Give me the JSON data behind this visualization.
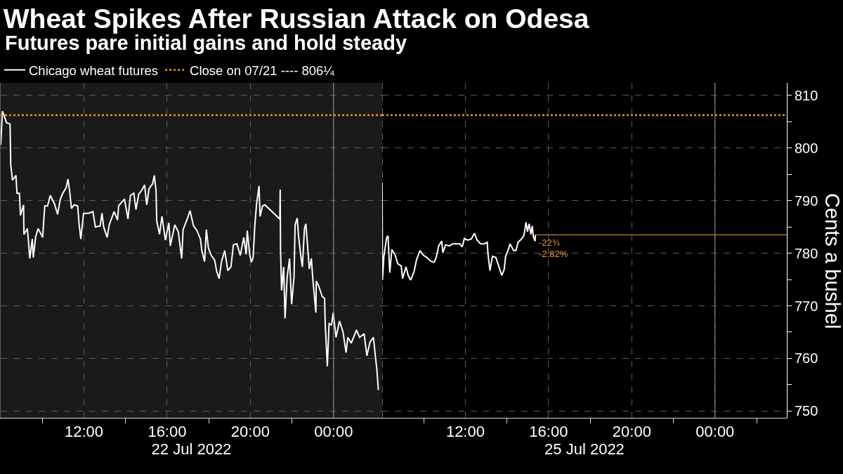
{
  "chart_data": [
    {
      "type": "line",
      "title": "Wheat Spikes After Russian Attack on Odesa",
      "subtitle": "Futures pare initial gains and hold steady",
      "xlabel": "22 Jul 2022",
      "xlim": [
        "2022-07-22T08:00",
        "2022-07-23T02:20"
      ],
      "xticks": [
        {
          "value": "2022-07-22T10:00",
          "label": null
        },
        {
          "value": "2022-07-22T12:00",
          "label": "12:00"
        },
        {
          "value": "2022-07-22T14:00",
          "label": null
        },
        {
          "value": "2022-07-22T16:00",
          "label": "16:00"
        },
        {
          "value": "2022-07-22T18:00",
          "label": null
        },
        {
          "value": "2022-07-22T20:00",
          "label": "20:00"
        },
        {
          "value": "2022-07-22T22:00",
          "label": null
        },
        {
          "value": "2022-07-23T00:00",
          "label": "00:00"
        }
      ],
      "ylim": [
        748.7,
        812.4
      ],
      "yticks": [
        750,
        760,
        770,
        780,
        790,
        800,
        810
      ],
      "tick_labels": "x",
      "grid": true,
      "legend": "top left",
      "series": [
        {
          "name": "Chicago wheat futures",
          "color": "#ffffff",
          "x": [
            "2022-07-22T08:00",
            "2022-07-22T08:05",
            "2022-07-22T08:10",
            "2022-07-22T08:17",
            "2022-07-22T08:27",
            "2022-07-22T08:29",
            "2022-07-22T08:34",
            "2022-07-22T08:44",
            "2022-07-22T08:47",
            "2022-07-22T08:54",
            "2022-07-22T08:57",
            "2022-07-22T09:06",
            "2022-07-22T09:07",
            "2022-07-22T09:17",
            "2022-07-22T09:24",
            "2022-07-22T09:31",
            "2022-07-22T09:34",
            "2022-07-22T09:41",
            "2022-07-22T09:48",
            "2022-07-22T10:01",
            "2022-07-22T10:07",
            "2022-07-22T10:15",
            "2022-07-22T10:23",
            "2022-07-22T10:35",
            "2022-07-22T10:44",
            "2022-07-22T10:52",
            "2022-07-22T10:59",
            "2022-07-22T11:09",
            "2022-07-22T11:14",
            "2022-07-22T11:19",
            "2022-07-22T11:24",
            "2022-07-22T11:32",
            "2022-07-22T11:42",
            "2022-07-22T11:46",
            "2022-07-22T11:51",
            "2022-07-22T11:59",
            "2022-07-22T12:13",
            "2022-07-22T12:26",
            "2022-07-22T12:33",
            "2022-07-22T12:47",
            "2022-07-22T12:52",
            "2022-07-22T12:57",
            "2022-07-22T13:07",
            "2022-07-22T13:13",
            "2022-07-22T13:27",
            "2022-07-22T13:37",
            "2022-07-22T13:40",
            "2022-07-22T13:57",
            "2022-07-22T14:07",
            "2022-07-22T14:14",
            "2022-07-22T14:24",
            "2022-07-22T14:30",
            "2022-07-22T14:38",
            "2022-07-22T14:48",
            "2022-07-22T14:55",
            "2022-07-22T15:01",
            "2022-07-22T15:08",
            "2022-07-22T15:18",
            "2022-07-22T15:23",
            "2022-07-22T15:28",
            "2022-07-22T15:30",
            "2022-07-22T15:38",
            "2022-07-22T15:45",
            "2022-07-22T15:55",
            "2022-07-22T16:05",
            "2022-07-22T16:09",
            "2022-07-22T16:22",
            "2022-07-22T16:32",
            "2022-07-22T16:42",
            "2022-07-22T16:46",
            "2022-07-22T16:59",
            "2022-07-22T17:06",
            "2022-07-22T17:16",
            "2022-07-22T17:26",
            "2022-07-22T17:36",
            "2022-07-22T17:40",
            "2022-07-22T17:48",
            "2022-07-22T17:53",
            "2022-07-22T17:59",
            "2022-07-22T18:07",
            "2022-07-22T18:17",
            "2022-07-22T18:23",
            "2022-07-22T18:30",
            "2022-07-22T18:37",
            "2022-07-22T18:46",
            "2022-07-22T18:55",
            "2022-07-22T19:04",
            "2022-07-22T19:11",
            "2022-07-22T19:21",
            "2022-07-22T19:31",
            "2022-07-22T19:41",
            "2022-07-22T19:48",
            "2022-07-22T19:51",
            "2022-07-22T19:58",
            "2022-07-22T20:03",
            "2022-07-22T20:08",
            "2022-07-22T20:13",
            "2022-07-22T20:18",
            "2022-07-22T20:25",
            "2022-07-22T20:28",
            "2022-07-22T20:35",
            "2022-07-22T20:42",
            "2022-07-22T21:25",
            "2022-07-22T21:26",
            "2022-07-22T21:27",
            "2022-07-22T21:30",
            "2022-07-22T21:36",
            "2022-07-22T21:40",
            "2022-07-22T21:46",
            "2022-07-22T21:53",
            "2022-07-22T21:59",
            "2022-07-22T22:06",
            "2022-07-22T22:09",
            "2022-07-22T22:15",
            "2022-07-22T22:19",
            "2022-07-22T22:26",
            "2022-07-22T22:30",
            "2022-07-22T22:36",
            "2022-07-22T22:40",
            "2022-07-22T22:45",
            "2022-07-22T22:50",
            "2022-07-22T22:56",
            "2022-07-22T23:00",
            "2022-07-22T23:09",
            "2022-07-22T23:10",
            "2022-07-22T23:17",
            "2022-07-22T23:27",
            "2022-07-22T23:34",
            "2022-07-22T23:36",
            "2022-07-22T23:42",
            "2022-07-22T23:47",
            "2022-07-22T23:54",
            "2022-07-22T23:59",
            "2022-07-23T00:07",
            "2022-07-23T00:17",
            "2022-07-23T00:27",
            "2022-07-23T00:36",
            "2022-07-23T00:41",
            "2022-07-23T00:51",
            "2022-07-23T01:06",
            "2022-07-23T01:15",
            "2022-07-23T01:28",
            "2022-07-23T01:36",
            "2022-07-23T01:45",
            "2022-07-23T01:55",
            "2022-07-23T02:00",
            "2022-07-23T02:05",
            "2022-07-23T02:09"
          ],
          "values": [
            800.6,
            807.0,
            806.1,
            804.8,
            804.6,
            796.8,
            793.9,
            794.8,
            791.4,
            791.4,
            787.2,
            789.2,
            783.6,
            784.7,
            779.0,
            782.7,
            779.2,
            783.2,
            784.7,
            783.0,
            789.0,
            789.0,
            791.0,
            789.4,
            787.4,
            790.3,
            791.4,
            792.5,
            794.1,
            791.7,
            788.5,
            789.2,
            789.0,
            785.6,
            782.7,
            787.6,
            787.6,
            787.9,
            785.0,
            785.2,
            787.6,
            785.0,
            783.0,
            785.4,
            787.9,
            786.3,
            789.0,
            790.3,
            786.5,
            791.0,
            791.4,
            788.3,
            791.2,
            792.1,
            793.0,
            789.2,
            792.3,
            793.2,
            794.8,
            791.9,
            786.1,
            783.6,
            787.0,
            782.5,
            785.8,
            781.4,
            785.4,
            784.1,
            779.0,
            784.5,
            786.7,
            788.1,
            785.2,
            784.3,
            782.7,
            780.5,
            778.4,
            784.5,
            781.0,
            779.6,
            778.7,
            776.5,
            775.2,
            778.5,
            780.5,
            776.7,
            777.4,
            781.6,
            781.8,
            779.6,
            783.0,
            779.8,
            784.3,
            779.8,
            778.3,
            779.2,
            785.4,
            789.4,
            792.8,
            787.0,
            789.0,
            789.2,
            786.5,
            792.1,
            780.7,
            772.9,
            777.4,
            767.6,
            775.4,
            779.0,
            770.3,
            775.6,
            785.4,
            786.7,
            783.2,
            779.2,
            777.4,
            784.7,
            785.6,
            781.4,
            777.0,
            779.0,
            775.2,
            768.7,
            774.7,
            773.8,
            771.8,
            771.4,
            766.3,
            758.5,
            766.7,
            766.3,
            768.7,
            764.0,
            767.1,
            765.1,
            761.1,
            764.0,
            762.9,
            765.4,
            764.0,
            764.7,
            760.5,
            763.1,
            764.0,
            760.7,
            757.8,
            754.0
          ]
        }
      ],
      "ref_lines": [
        {
          "axis": "y",
          "value": 806.25,
          "label": "Close on 07/21 ---- 806¼",
          "color": "#f7941d",
          "line_style": "dotted"
        },
        {
          "axis": "x",
          "value": "2022-07-23T00:00",
          "color": "#9a9a9a"
        }
      ],
      "bands": [
        {
          "axis": "x",
          "from": "2022-07-22T08:00",
          "to": "2022-07-23T02:20",
          "color": "#1a1a1a"
        }
      ]
    },
    {
      "type": "line",
      "xlabel": "25 Jul 2022",
      "ylabel": "Cents a bushel",
      "xlim": [
        "2022-07-25T08:00",
        "2022-07-26T03:27"
      ],
      "xticks": [
        {
          "value": "2022-07-25T10:00",
          "label": null
        },
        {
          "value": "2022-07-25T12:00",
          "label": "12:00"
        },
        {
          "value": "2022-07-25T14:00",
          "label": null
        },
        {
          "value": "2022-07-25T16:00",
          "label": "16:00"
        },
        {
          "value": "2022-07-25T18:00",
          "label": null
        },
        {
          "value": "2022-07-25T20:00",
          "label": "20:00"
        },
        {
          "value": "2022-07-25T22:00",
          "label": null
        },
        {
          "value": "2022-07-26T00:00",
          "label": "00:00"
        },
        {
          "value": "2022-07-26T02:00",
          "label": null
        }
      ],
      "ylim": [
        748.7,
        812.4
      ],
      "yticks": [
        750,
        {
          "value": 755,
          "label": null
        },
        760,
        {
          "value": 765,
          "label": null
        },
        770,
        {
          "value": 775,
          "label": null
        },
        780,
        {
          "value": 785,
          "label": null
        },
        790,
        {
          "value": 795,
          "label": null
        },
        800,
        {
          "value": 805,
          "label": null
        },
        810
      ],
      "grid": true,
      "series": [
        {
          "name": "Chicago wheat futures",
          "color": "#ffffff",
          "x": [
            "2022-07-25T08:00",
            "2022-07-25T08:01",
            "2022-07-25T08:05",
            "2022-07-25T08:13",
            "2022-07-25T08:17",
            "2022-07-25T08:22",
            "2022-07-25T08:28",
            "2022-07-25T08:38",
            "2022-07-25T08:45",
            "2022-07-25T08:55",
            "2022-07-25T08:59",
            "2022-07-25T09:09",
            "2022-07-25T09:15",
            "2022-07-25T09:22",
            "2022-07-25T09:32",
            "2022-07-25T09:39",
            "2022-07-25T09:49",
            "2022-07-25T09:59",
            "2022-07-25T10:09",
            "2022-07-25T10:20",
            "2022-07-25T10:30",
            "2022-07-25T10:36",
            "2022-07-25T10:43",
            "2022-07-25T10:52",
            "2022-07-25T10:55",
            "2022-07-25T11:03",
            "2022-07-25T11:14",
            "2022-07-25T11:24",
            "2022-07-25T11:34",
            "2022-07-25T11:44",
            "2022-07-25T11:51",
            "2022-07-25T11:57",
            "2022-07-25T12:07",
            "2022-07-25T12:17",
            "2022-07-25T12:26",
            "2022-07-25T12:34",
            "2022-07-25T12:44",
            "2022-07-25T12:55",
            "2022-07-25T13:03",
            "2022-07-25T13:05",
            "2022-07-25T13:08",
            "2022-07-25T13:11",
            "2022-07-25T13:18",
            "2022-07-25T13:28",
            "2022-07-25T13:35",
            "2022-07-25T13:45",
            "2022-07-25T13:52",
            "2022-07-25T13:56",
            "2022-07-25T14:03",
            "2022-07-25T14:09",
            "2022-07-25T14:19",
            "2022-07-25T14:26",
            "2022-07-25T14:32",
            "2022-07-25T14:42",
            "2022-07-25T14:49",
            "2022-07-25T14:55",
            "2022-07-25T14:59",
            "2022-07-25T15:04",
            "2022-07-25T15:09",
            "2022-07-25T15:13",
            "2022-07-25T15:16",
            "2022-07-25T15:21",
            "2022-07-25T15:22"
          ],
          "values": [
            793.4,
            774.9,
            779.4,
            783.0,
            783.3,
            776.3,
            780.7,
            779.6,
            778.0,
            777.6,
            775.2,
            777.4,
            775.8,
            774.9,
            776.5,
            778.7,
            780.5,
            779.6,
            779.2,
            778.5,
            778.3,
            779.2,
            781.4,
            782.3,
            780.1,
            781.6,
            781.4,
            781.8,
            781.8,
            781.8,
            781.2,
            782.8,
            782.5,
            782.7,
            783.8,
            782.5,
            781.8,
            781.8,
            782.1,
            780.1,
            778.3,
            776.7,
            779.4,
            779.2,
            777.8,
            775.8,
            776.9,
            779.4,
            780.5,
            781.8,
            780.5,
            780.5,
            782.1,
            782.7,
            783.4,
            785.9,
            784.1,
            785.6,
            783.6,
            785.2,
            783.2,
            782.3,
            783.5
          ]
        },
        {
          "color": "#e8973a",
          "x": [
            "2022-07-25T15:22",
            "2022-07-26T03:27"
          ],
          "values": [
            783.5,
            783.5
          ]
        }
      ],
      "ref_lines": [
        {
          "axis": "y",
          "value": 806.25,
          "color": "#f7941d",
          "line_style": "dotted"
        },
        {
          "axis": "x",
          "value": "2022-07-26T00:00",
          "color": "#9a9a9a"
        },
        {
          "axis": "x",
          "value": "2022-07-25T08:00",
          "color": "#c8c8c8",
          "line_style": "dashed"
        }
      ],
      "annotations": [
        {
          "text": "-22¾",
          "x": "2022-07-25T15:22",
          "y": 783.5
        },
        {
          "text": "-2.82%",
          "x": "2022-07-25T15:22",
          "y": 783.5
        }
      ]
    }
  ]
}
